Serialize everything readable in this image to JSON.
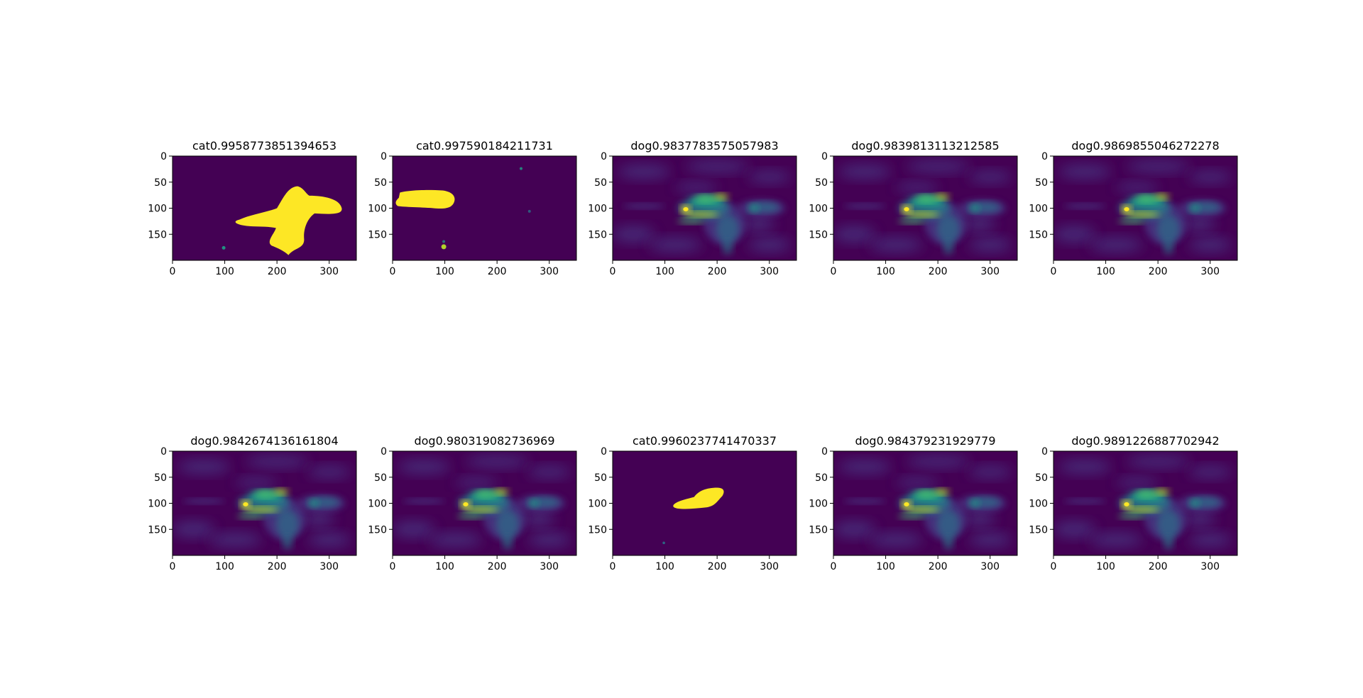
{
  "colors": {
    "background": "#440154",
    "low": "#46327e",
    "mid": "#277f8e",
    "midhigh": "#1fa187",
    "high": "#4ac16d",
    "hot": "#b8de29",
    "peak": "#fde725"
  },
  "chart_data": [
    {
      "type": "heatmap",
      "title": "cat0.9958773851394653",
      "pattern": "mask-large",
      "xlim": [
        0,
        352
      ],
      "ylim": [
        200,
        0
      ],
      "xticks": [
        0,
        100,
        200,
        300
      ],
      "yticks": [
        0,
        50,
        100,
        150
      ],
      "grid": false
    },
    {
      "type": "heatmap",
      "title": "cat0.997590184211731",
      "pattern": "mask-left",
      "xlim": [
        0,
        352
      ],
      "ylim": [
        200,
        0
      ],
      "xticks": [
        0,
        100,
        200,
        300
      ],
      "yticks": [
        0,
        50,
        100,
        150
      ],
      "grid": false
    },
    {
      "type": "heatmap",
      "title": "dog0.9837783575057983",
      "pattern": "activation",
      "xlim": [
        0,
        352
      ],
      "ylim": [
        200,
        0
      ],
      "xticks": [
        0,
        100,
        200,
        300
      ],
      "yticks": [
        0,
        50,
        100,
        150
      ],
      "grid": false
    },
    {
      "type": "heatmap",
      "title": "dog0.9839813113212585",
      "pattern": "activation",
      "xlim": [
        0,
        352
      ],
      "ylim": [
        200,
        0
      ],
      "xticks": [
        0,
        100,
        200,
        300
      ],
      "yticks": [
        0,
        50,
        100,
        150
      ],
      "grid": false
    },
    {
      "type": "heatmap",
      "title": "dog0.9869855046272278",
      "pattern": "activation",
      "xlim": [
        0,
        352
      ],
      "ylim": [
        200,
        0
      ],
      "xticks": [
        0,
        100,
        200,
        300
      ],
      "yticks": [
        0,
        50,
        100,
        150
      ],
      "grid": false
    },
    {
      "type": "heatmap",
      "title": "dog0.9842674136161804",
      "pattern": "activation",
      "xlim": [
        0,
        352
      ],
      "ylim": [
        200,
        0
      ],
      "xticks": [
        0,
        100,
        200,
        300
      ],
      "yticks": [
        0,
        50,
        100,
        150
      ],
      "grid": false
    },
    {
      "type": "heatmap",
      "title": "dog0.980319082736969",
      "pattern": "activation",
      "xlim": [
        0,
        352
      ],
      "ylim": [
        200,
        0
      ],
      "xticks": [
        0,
        100,
        200,
        300
      ],
      "yticks": [
        0,
        50,
        100,
        150
      ],
      "grid": false
    },
    {
      "type": "heatmap",
      "title": "cat0.9960237741470337",
      "pattern": "mask-center",
      "xlim": [
        0,
        352
      ],
      "ylim": [
        200,
        0
      ],
      "xticks": [
        0,
        100,
        200,
        300
      ],
      "yticks": [
        0,
        50,
        100,
        150
      ],
      "grid": false
    },
    {
      "type": "heatmap",
      "title": "dog0.984379231929779",
      "pattern": "activation",
      "xlim": [
        0,
        352
      ],
      "ylim": [
        200,
        0
      ],
      "xticks": [
        0,
        100,
        200,
        300
      ],
      "yticks": [
        0,
        50,
        100,
        150
      ],
      "grid": false
    },
    {
      "type": "heatmap",
      "title": "dog0.9891226887702942",
      "pattern": "activation",
      "xlim": [
        0,
        352
      ],
      "ylim": [
        200,
        0
      ],
      "xticks": [
        0,
        100,
        200,
        300
      ],
      "yticks": [
        0,
        50,
        100,
        150
      ],
      "grid": false
    }
  ]
}
